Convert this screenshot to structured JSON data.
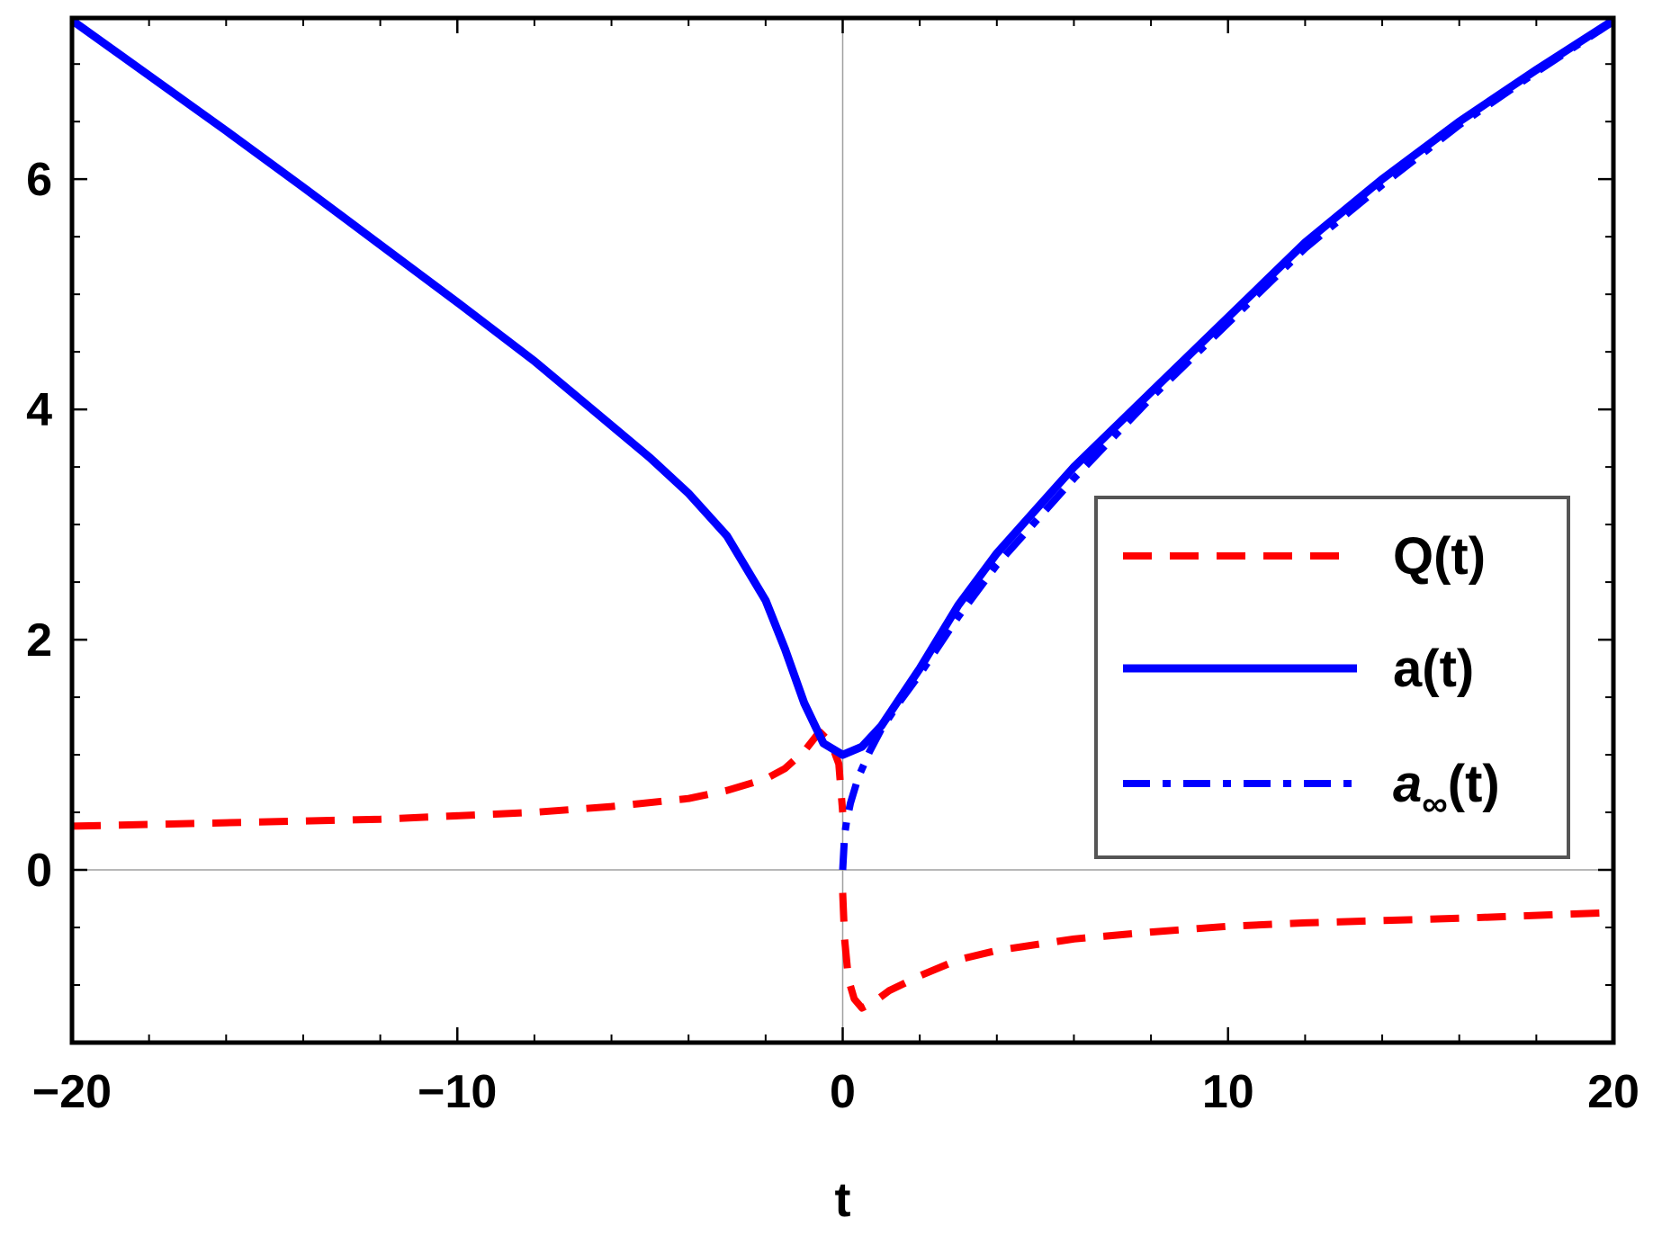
{
  "chart_data": {
    "type": "line",
    "title": "",
    "xlabel": "t",
    "ylabel": "",
    "xlim": [
      -20,
      20
    ],
    "ylim": [
      -1.5,
      7.4
    ],
    "x_ticks": [
      -20,
      -10,
      0,
      10,
      20
    ],
    "x_tick_labels": [
      "−20",
      "−10",
      "0",
      "10",
      "20"
    ],
    "y_ticks": [
      0,
      2,
      4,
      6
    ],
    "y_tick_labels": [
      "0",
      "2",
      "4",
      "6"
    ],
    "grid": false,
    "zero_lines": true,
    "legend_position": "right",
    "legend": [
      {
        "main": "Q(t)",
        "sub": "",
        "suffix": ""
      },
      {
        "main": "a(t)",
        "sub": "",
        "suffix": ""
      },
      {
        "main": "a",
        "sub": "∞",
        "suffix": "(t)"
      }
    ],
    "series": [
      {
        "name": "Q(t)",
        "color": "#ff0000",
        "style": "dashed",
        "x": [
          -20,
          -16,
          -12,
          -8,
          -6,
          -4,
          -3,
          -2,
          -1.5,
          -1,
          -0.6,
          -0.3,
          -0.1,
          0
        ],
        "y": [
          0.38,
          0.41,
          0.44,
          0.5,
          0.55,
          0.62,
          0.69,
          0.79,
          0.88,
          1.03,
          1.2,
          1.1,
          0.92,
          0.5
        ]
      },
      {
        "name": "Q(t)",
        "color": "#ff0000",
        "style": "dashed",
        "x": [
          0,
          0.05,
          0.15,
          0.3,
          0.5,
          0.8,
          1.2,
          2,
          3,
          4,
          6,
          8,
          10,
          12,
          16,
          20
        ],
        "y": [
          -0.2,
          -0.6,
          -0.95,
          -1.12,
          -1.2,
          -1.15,
          -1.05,
          -0.92,
          -0.78,
          -0.7,
          -0.6,
          -0.54,
          -0.49,
          -0.46,
          -0.42,
          -0.37
        ]
      },
      {
        "name": "a(t)",
        "color": "#0000ff",
        "style": "solid",
        "x": [
          -20,
          -18,
          -16,
          -14,
          -12,
          -10,
          -8,
          -6,
          -5,
          -4,
          -3,
          -2,
          -1.5,
          -1,
          -0.5,
          0,
          0.5,
          1,
          1.5,
          2,
          3,
          4,
          6,
          8,
          10,
          12,
          14,
          16,
          18,
          20
        ],
        "y": [
          7.38,
          6.9,
          6.42,
          5.93,
          5.43,
          4.93,
          4.42,
          3.86,
          3.58,
          3.27,
          2.9,
          2.34,
          1.92,
          1.45,
          1.1,
          1.0,
          1.07,
          1.25,
          1.5,
          1.75,
          2.3,
          2.75,
          3.5,
          4.15,
          4.8,
          5.45,
          6.0,
          6.5,
          6.95,
          7.38
        ]
      },
      {
        "name": "a∞(t)",
        "color": "#0000ff",
        "style": "dashdot",
        "x": [
          0,
          0.05,
          0.1,
          0.2,
          0.4,
          0.7,
          1,
          1.5,
          2,
          3,
          4,
          6,
          8,
          10,
          12,
          14,
          16,
          18,
          20
        ],
        "y": [
          0,
          0.3,
          0.42,
          0.58,
          0.8,
          1.03,
          1.22,
          1.47,
          1.7,
          2.2,
          2.65,
          3.4,
          4.1,
          4.75,
          5.4,
          5.95,
          6.47,
          6.93,
          7.37
        ]
      }
    ]
  }
}
